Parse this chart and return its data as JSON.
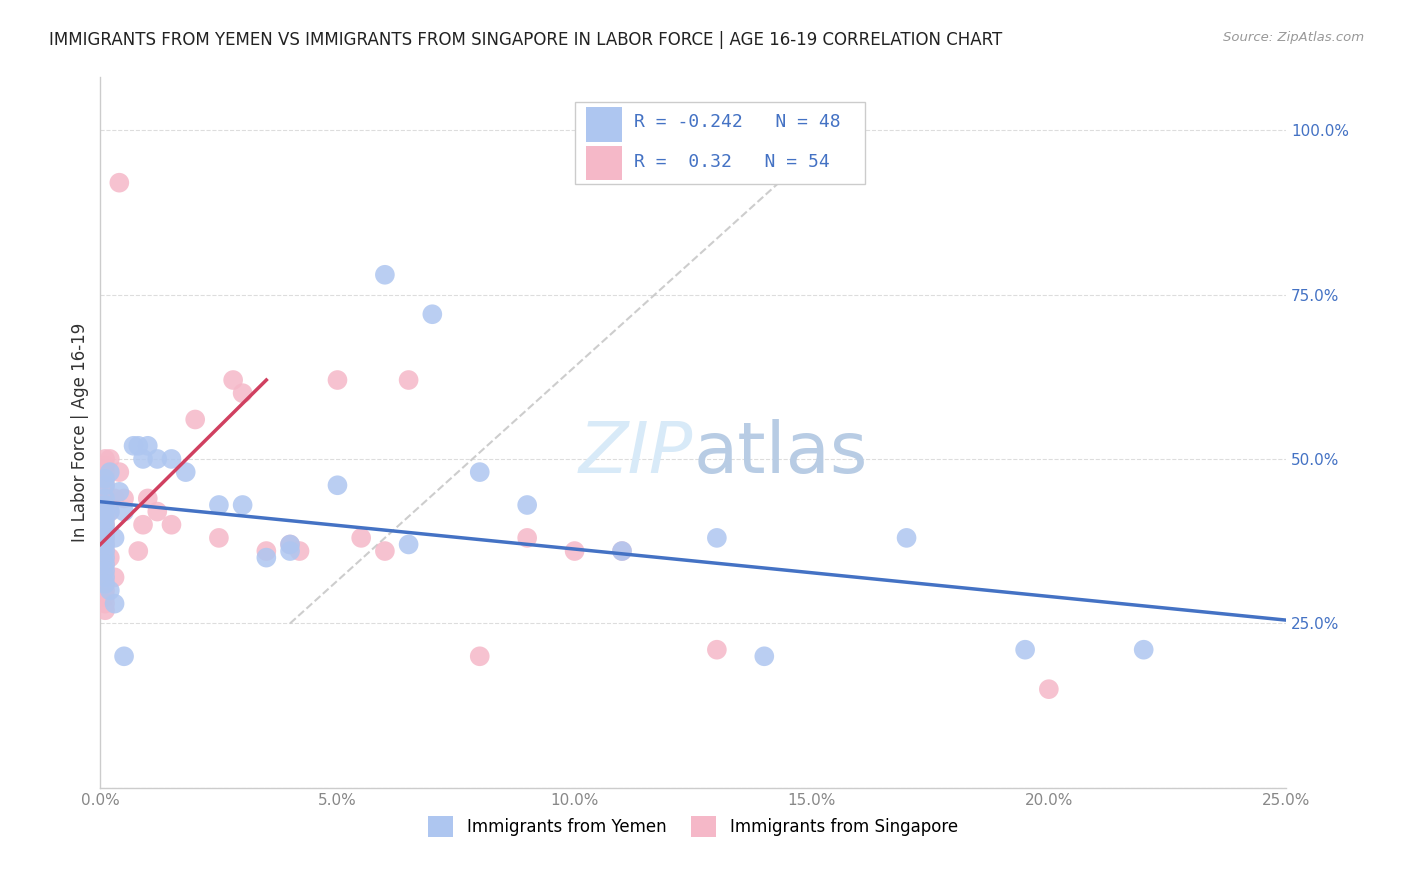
{
  "title": "IMMIGRANTS FROM YEMEN VS IMMIGRANTS FROM SINGAPORE IN LABOR FORCE | AGE 16-19 CORRELATION CHART",
  "source": "Source: ZipAtlas.com",
  "ylabel": "In Labor Force | Age 16-19",
  "xlim": [
    0.0,
    0.25
  ],
  "ylim": [
    0.0,
    1.08
  ],
  "xtick_vals": [
    0.0,
    0.05,
    0.1,
    0.15,
    0.2,
    0.25
  ],
  "ytick_vals": [
    0.0,
    0.25,
    0.5,
    0.75,
    1.0
  ],
  "xtick_labels": [
    "0.0%",
    "5.0%",
    "10.0%",
    "15.0%",
    "20.0%",
    "25.0%"
  ],
  "right_ytick_labels": [
    "",
    "25.0%",
    "50.0%",
    "75.0%",
    "100.0%"
  ],
  "yemen_color": "#aec6f0",
  "singapore_color": "#f5b8c8",
  "yemen_line_color": "#4472c4",
  "singapore_line_color": "#d04060",
  "diagonal_color": "#c8c8c8",
  "watermark_color": "#d8eaf8",
  "legend_r_color": "#4472c4",
  "legend_n_color": "#4472c4",
  "yemen_R": -0.242,
  "yemen_N": 48,
  "singapore_R": 0.32,
  "singapore_N": 54,
  "yemen_line": [
    [
      0.0,
      0.435
    ],
    [
      0.25,
      0.255
    ]
  ],
  "singapore_line": [
    [
      0.0,
      0.37
    ],
    [
      0.035,
      0.62
    ]
  ],
  "diagonal_line": [
    [
      0.04,
      0.25
    ],
    [
      0.16,
      1.03
    ]
  ],
  "yemen_x": [
    0.001,
    0.001,
    0.001,
    0.001,
    0.001,
    0.001,
    0.001,
    0.001,
    0.001,
    0.001,
    0.001,
    0.001,
    0.001,
    0.001,
    0.001,
    0.001,
    0.002,
    0.002,
    0.002,
    0.003,
    0.003,
    0.004,
    0.005,
    0.005,
    0.007,
    0.008,
    0.009,
    0.01,
    0.012,
    0.015,
    0.018,
    0.025,
    0.03,
    0.035,
    0.04,
    0.04,
    0.05,
    0.06,
    0.065,
    0.07,
    0.08,
    0.09,
    0.11,
    0.13,
    0.14,
    0.17,
    0.195,
    0.22
  ],
  "yemen_y": [
    0.44,
    0.43,
    0.42,
    0.41,
    0.4,
    0.39,
    0.38,
    0.37,
    0.36,
    0.35,
    0.34,
    0.33,
    0.32,
    0.31,
    0.46,
    0.47,
    0.48,
    0.42,
    0.3,
    0.38,
    0.28,
    0.45,
    0.42,
    0.2,
    0.52,
    0.52,
    0.5,
    0.52,
    0.5,
    0.5,
    0.48,
    0.43,
    0.43,
    0.35,
    0.37,
    0.36,
    0.46,
    0.78,
    0.37,
    0.72,
    0.48,
    0.43,
    0.36,
    0.38,
    0.2,
    0.38,
    0.21,
    0.21
  ],
  "singapore_x": [
    0.001,
    0.001,
    0.001,
    0.001,
    0.001,
    0.001,
    0.001,
    0.001,
    0.001,
    0.001,
    0.001,
    0.001,
    0.001,
    0.001,
    0.001,
    0.001,
    0.001,
    0.001,
    0.001,
    0.001,
    0.001,
    0.001,
    0.001,
    0.001,
    0.002,
    0.002,
    0.002,
    0.003,
    0.003,
    0.004,
    0.004,
    0.005,
    0.008,
    0.009,
    0.01,
    0.012,
    0.015,
    0.02,
    0.025,
    0.028,
    0.03,
    0.035,
    0.04,
    0.042,
    0.05,
    0.055,
    0.06,
    0.065,
    0.08,
    0.09,
    0.1,
    0.11,
    0.13,
    0.2
  ],
  "singapore_y": [
    0.5,
    0.49,
    0.48,
    0.47,
    0.46,
    0.45,
    0.44,
    0.43,
    0.42,
    0.41,
    0.4,
    0.39,
    0.38,
    0.37,
    0.36,
    0.35,
    0.34,
    0.33,
    0.32,
    0.31,
    0.3,
    0.29,
    0.28,
    0.27,
    0.5,
    0.42,
    0.35,
    0.44,
    0.32,
    0.48,
    0.92,
    0.44,
    0.36,
    0.4,
    0.44,
    0.42,
    0.4,
    0.56,
    0.38,
    0.62,
    0.6,
    0.36,
    0.37,
    0.36,
    0.62,
    0.38,
    0.36,
    0.62,
    0.2,
    0.38,
    0.36,
    0.36,
    0.21,
    0.15
  ]
}
